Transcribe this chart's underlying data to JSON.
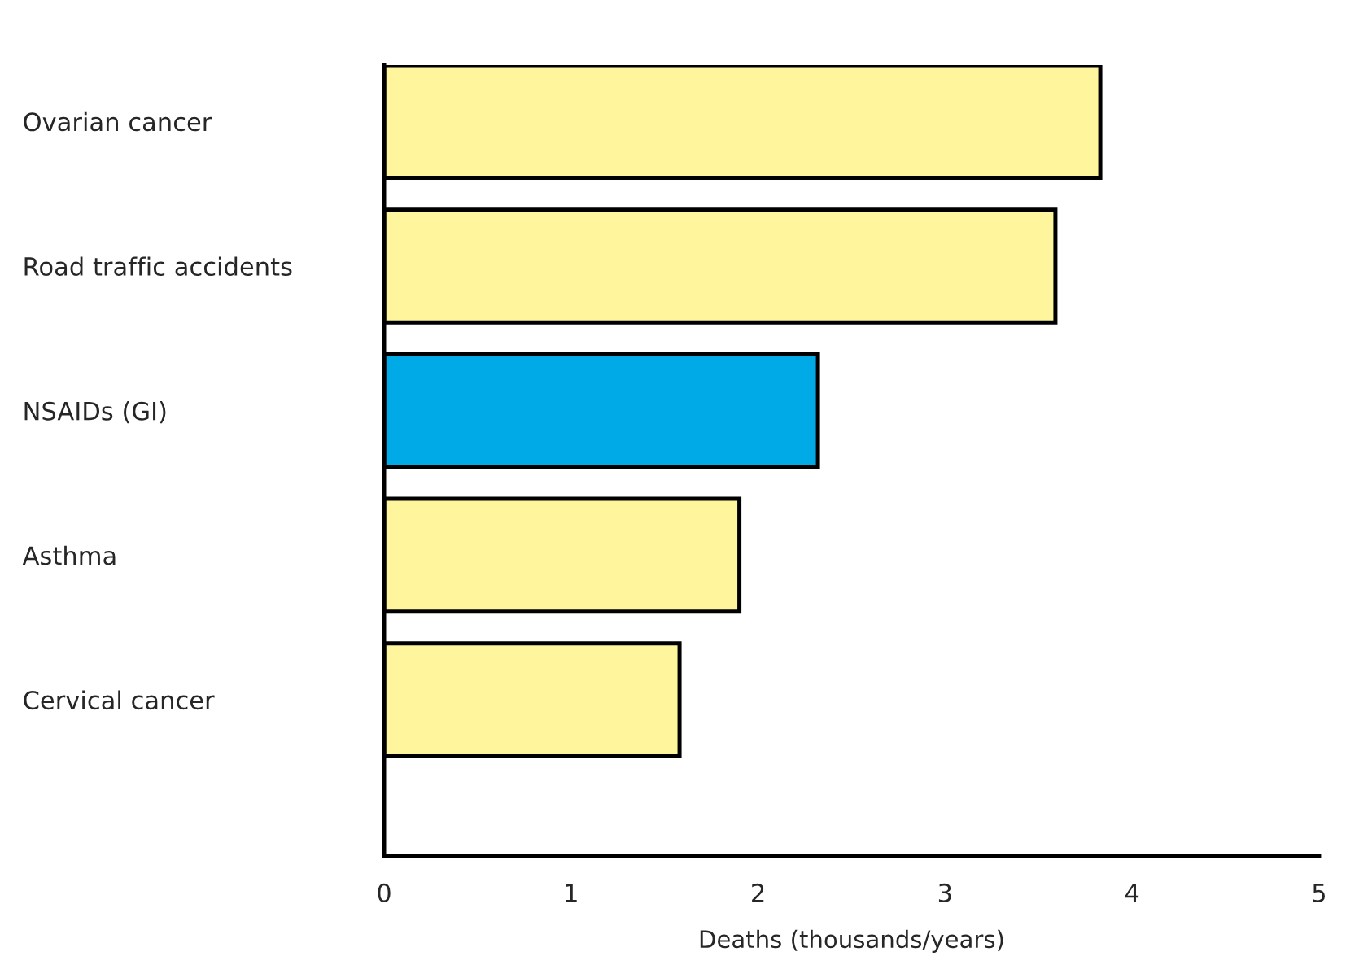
{
  "chart_data": {
    "type": "bar",
    "orientation": "horizontal",
    "categories": [
      "Ovarian cancer",
      "Road traffic accidents",
      "NSAIDs (GI)",
      "Asthma",
      "Cervical cancer"
    ],
    "values": [
      3.83,
      3.59,
      2.32,
      1.9,
      1.58
    ],
    "colors": [
      "#fff59d",
      "#fff59d",
      "#00aae6",
      "#fff59d",
      "#fff59d"
    ],
    "xlabel": "Deaths (thousands/years)",
    "xlim": [
      0,
      5
    ],
    "xticks": [
      0,
      1,
      2,
      3,
      4,
      5
    ],
    "grid": false,
    "legend": false
  }
}
